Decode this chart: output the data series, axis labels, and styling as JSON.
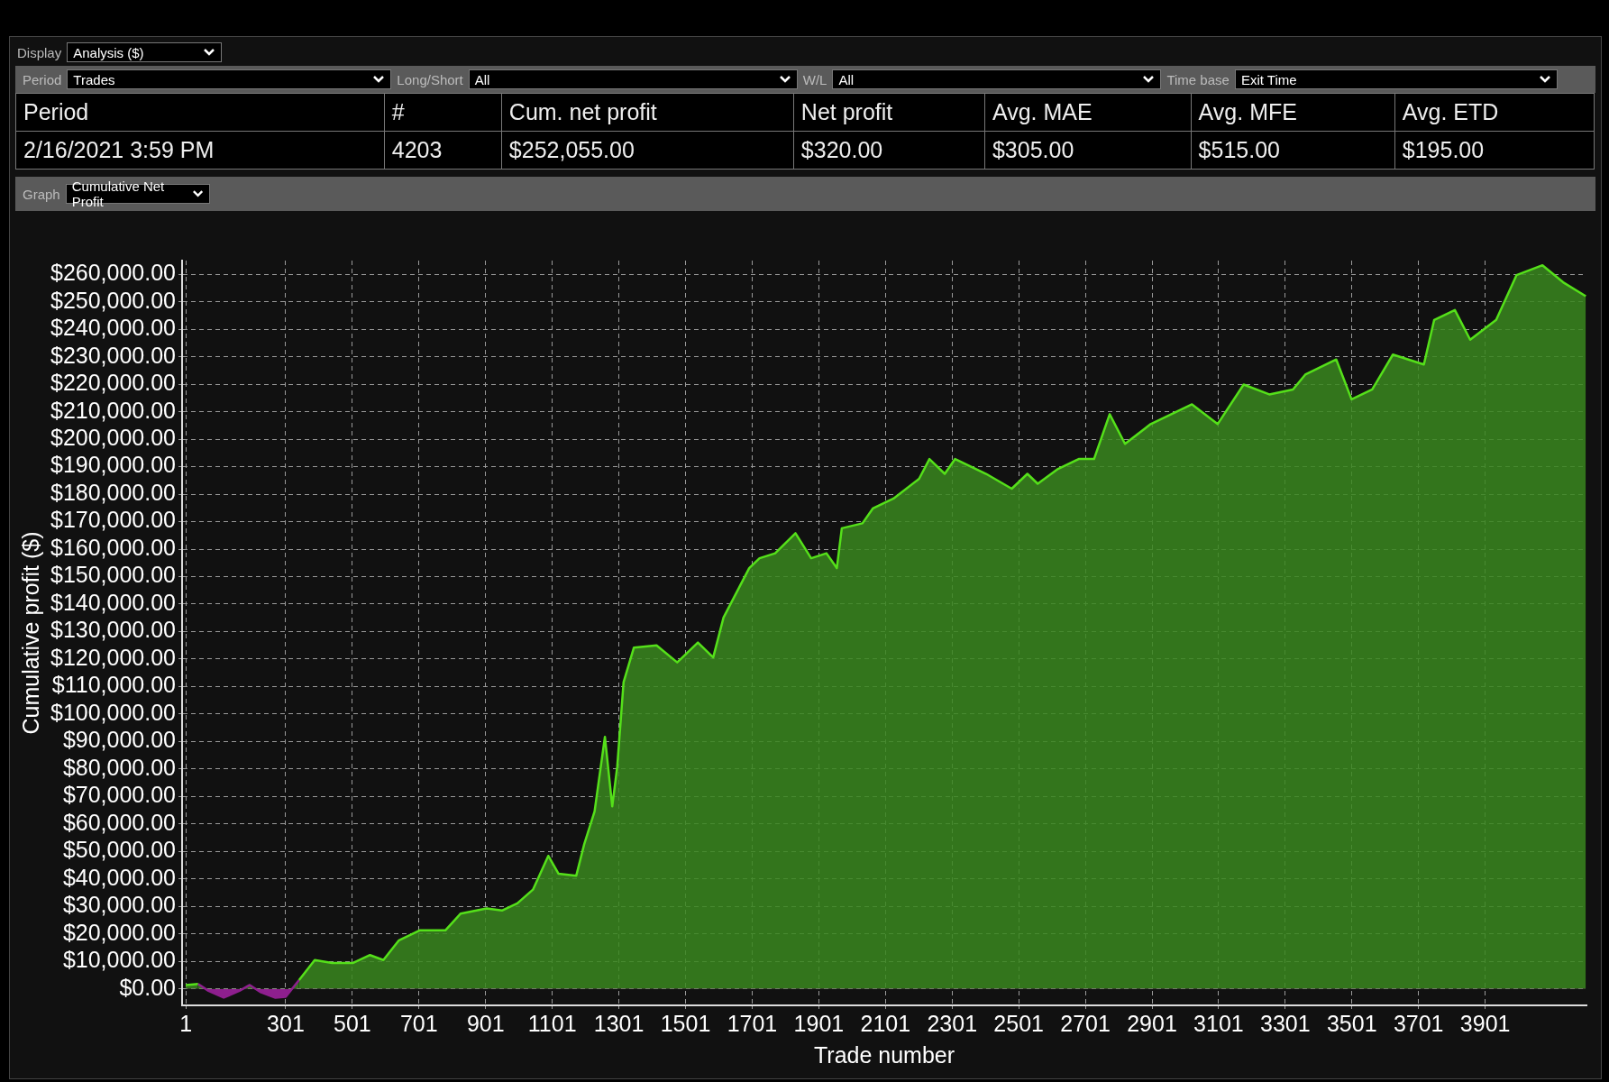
{
  "chart_data": {
    "type": "area",
    "xlabel": "Trade number",
    "ylabel": "Cumulative profit ($)",
    "annotations": [
      "Display",
      "Analysis ($)",
      "Period",
      "Trades",
      "Long/Short",
      "All",
      "W/L",
      "All",
      "Time base",
      "Exit Time",
      "Period",
      "#",
      "Cum. net profit",
      "Net profit",
      "Avg. MAE",
      "Avg. MFE",
      "Avg. ETD",
      "2/16/2021 3:59 PM",
      "4203",
      "$252,055.00",
      "$320.00",
      "$305.00",
      "$515.00",
      "$195.00",
      "Graph",
      "Cumulative Net Profit"
    ],
    "x": [
      1,
      38,
      69,
      115,
      162,
      193,
      224,
      270,
      301,
      341,
      388,
      440,
      502,
      554,
      594,
      641,
      703,
      780,
      826,
      904,
      950,
      996,
      1043,
      1089,
      1120,
      1173,
      1197,
      1228,
      1259,
      1281,
      1296,
      1315,
      1346,
      1414,
      1476,
      1538,
      1584,
      1615,
      1692,
      1723,
      1770,
      1831,
      1878,
      1924,
      1955,
      1970,
      2032,
      2063,
      2125,
      2202,
      2233,
      2279,
      2310,
      2403,
      2480,
      2527,
      2558,
      2619,
      2681,
      2727,
      2774,
      2820,
      2897,
      2959,
      3021,
      3098,
      3176,
      3253,
      3324,
      3361,
      3454,
      3500,
      3562,
      3624,
      3717,
      3748,
      3810,
      3856,
      3934,
      3995,
      4073,
      4135,
      4203
    ],
    "series": [
      {
        "color": "#55e01a",
        "values": [
          1400,
          1800,
          -700,
          -3200,
          -700,
          1400,
          -1100,
          -3200,
          -2900,
          3200,
          10500,
          9400,
          9400,
          12300,
          10500,
          17700,
          21300,
          21300,
          27400,
          29300,
          28500,
          31100,
          36100,
          48400,
          41900,
          41200,
          52700,
          64600,
          91700,
          66400,
          80900,
          111600,
          124200,
          125000,
          118800,
          126000,
          120600,
          135100,
          153100,
          156700,
          158500,
          165800,
          156700,
          158500,
          153100,
          167600,
          169400,
          174800,
          178400,
          185600,
          192800,
          187400,
          192800,
          187400,
          182000,
          187400,
          183800,
          189200,
          192800,
          192800,
          209100,
          198300,
          205500,
          209100,
          212700,
          205500,
          219900,
          216300,
          218100,
          223500,
          229000,
          214500,
          218100,
          230800,
          227200,
          243400,
          247000,
          236200,
          243400,
          259700,
          263300,
          257100,
          252055
        ]
      }
    ],
    "xlim": [
      -10,
      4205
    ],
    "xticks": [
      1,
      301,
      501,
      701,
      901,
      1101,
      1301,
      1501,
      1701,
      1901,
      2101,
      2301,
      2501,
      2701,
      2901,
      3101,
      3301,
      3501,
      3701,
      3901
    ],
    "ylim": [
      -6000,
      265000
    ],
    "yticks": [
      {
        "value": 0,
        "label": "$0.00"
      },
      {
        "value": 10000,
        "label": "$10,000.00"
      },
      {
        "value": 20000,
        "label": "$20,000.00"
      },
      {
        "value": 30000,
        "label": "$30,000.00"
      },
      {
        "value": 40000,
        "label": "$40,000.00"
      },
      {
        "value": 50000,
        "label": "$50,000.00"
      },
      {
        "value": 60000,
        "label": "$60,000.00"
      },
      {
        "value": 70000,
        "label": "$70,000.00"
      },
      {
        "value": 80000,
        "label": "$80,000.00"
      },
      {
        "value": 90000,
        "label": "$90,000.00"
      },
      {
        "value": 100000,
        "label": "$100,000.00"
      },
      {
        "value": 110000,
        "label": "$110,000.00"
      },
      {
        "value": 120000,
        "label": "$120,000.00"
      },
      {
        "value": 130000,
        "label": "$130,000.00"
      },
      {
        "value": 140000,
        "label": "$140,000.00"
      },
      {
        "value": 150000,
        "label": "$150,000.00"
      },
      {
        "value": 160000,
        "label": "$160,000.00"
      },
      {
        "value": 170000,
        "label": "$170,000.00"
      },
      {
        "value": 180000,
        "label": "$180,000.00"
      },
      {
        "value": 190000,
        "label": "$190,000.00"
      },
      {
        "value": 200000,
        "label": "$200,000.00"
      },
      {
        "value": 210000,
        "label": "$210,000.00"
      },
      {
        "value": 220000,
        "label": "$220,000.00"
      },
      {
        "value": 230000,
        "label": "$230,000.00"
      },
      {
        "value": 240000,
        "label": "$240,000.00"
      },
      {
        "value": 250000,
        "label": "$250,000.00"
      },
      {
        "value": 260000,
        "label": "$260,000.00"
      }
    ],
    "grid": true,
    "legend": false,
    "marker": "none",
    "line_style": "solid"
  }
}
